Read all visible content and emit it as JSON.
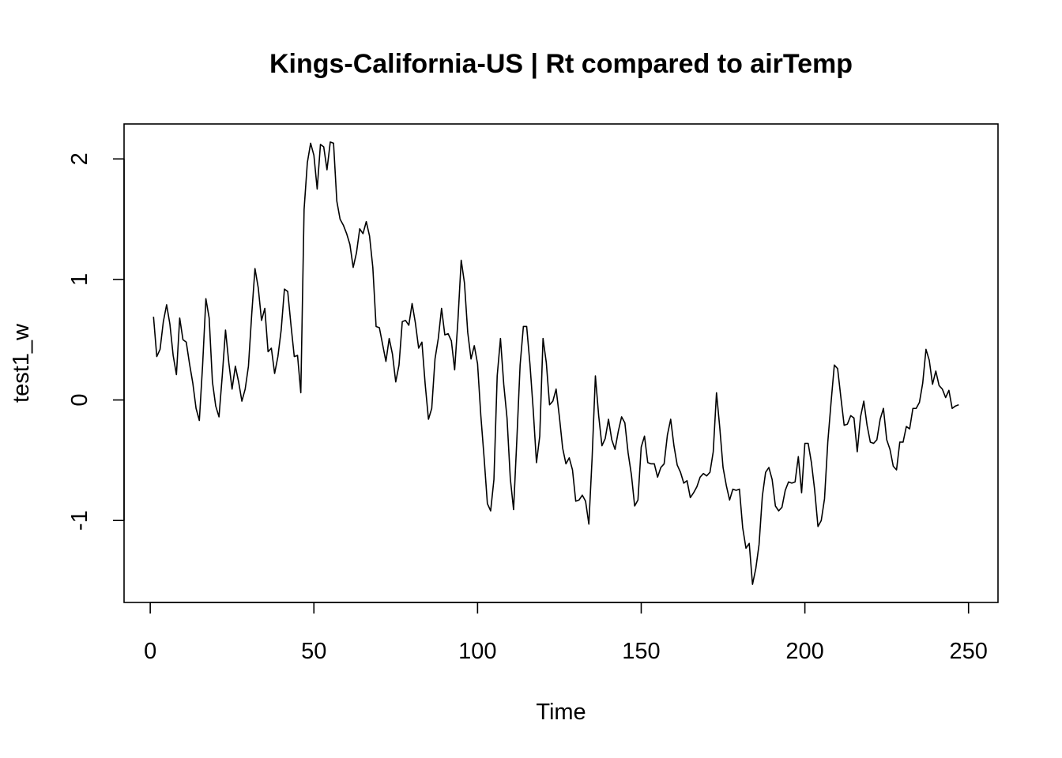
{
  "chart_data": {
    "type": "line",
    "title": "Kings-California-US | Rt compared to airTemp",
    "xlabel": "Time",
    "ylabel": "test1_w",
    "xlim": [
      -8,
      259
    ],
    "ylim": [
      -1.68,
      2.29
    ],
    "x_ticks": [
      0,
      50,
      100,
      150,
      200,
      250
    ],
    "x_tick_labels": [
      "0",
      "50",
      "100",
      "150",
      "200",
      "250"
    ],
    "y_ticks": [
      -1,
      0,
      1,
      2
    ],
    "y_tick_labels": [
      "-1",
      "0",
      "1",
      "2"
    ],
    "grid": false,
    "series": [
      {
        "x_start": 1,
        "x_step": 1,
        "values": [
          0.69,
          0.36,
          0.42,
          0.65,
          0.79,
          0.63,
          0.37,
          0.21,
          0.68,
          0.5,
          0.48,
          0.3,
          0.14,
          -0.07,
          -0.17,
          0.29,
          0.84,
          0.68,
          0.15,
          -0.05,
          -0.14,
          0.2,
          0.58,
          0.31,
          0.09,
          0.28,
          0.15,
          -0.01,
          0.09,
          0.28,
          0.71,
          1.09,
          0.93,
          0.66,
          0.76,
          0.4,
          0.43,
          0.22,
          0.36,
          0.58,
          0.92,
          0.9,
          0.62,
          0.36,
          0.37,
          0.06,
          1.58,
          1.97,
          2.13,
          2.03,
          1.75,
          2.12,
          2.1,
          1.91,
          2.14,
          2.13,
          1.65,
          1.5,
          1.45,
          1.38,
          1.29,
          1.1,
          1.22,
          1.42,
          1.38,
          1.48,
          1.36,
          1.1,
          0.61,
          0.6,
          0.46,
          0.32,
          0.51,
          0.38,
          0.15,
          0.29,
          0.65,
          0.66,
          0.62,
          0.8,
          0.64,
          0.43,
          0.48,
          0.13,
          -0.16,
          -0.07,
          0.34,
          0.51,
          0.76,
          0.54,
          0.55,
          0.49,
          0.25,
          0.66,
          1.16,
          0.97,
          0.56,
          0.34,
          0.45,
          0.3,
          -0.13,
          -0.48,
          -0.86,
          -0.92,
          -0.66,
          0.2,
          0.51,
          0.13,
          -0.15,
          -0.65,
          -0.91,
          -0.33,
          0.29,
          0.61,
          0.61,
          0.3,
          -0.08,
          -0.52,
          -0.3,
          0.51,
          0.31,
          -0.04,
          -0.01,
          0.09,
          -0.14,
          -0.4,
          -0.53,
          -0.48,
          -0.58,
          -0.84,
          -0.83,
          -0.79,
          -0.84,
          -1.03,
          -0.48,
          0.2,
          -0.13,
          -0.38,
          -0.32,
          -0.16,
          -0.33,
          -0.41,
          -0.26,
          -0.14,
          -0.19,
          -0.44,
          -0.62,
          -0.88,
          -0.83,
          -0.39,
          -0.3,
          -0.52,
          -0.53,
          -0.53,
          -0.64,
          -0.56,
          -0.53,
          -0.29,
          -0.16,
          -0.38,
          -0.54,
          -0.6,
          -0.69,
          -0.67,
          -0.81,
          -0.77,
          -0.72,
          -0.64,
          -0.61,
          -0.63,
          -0.6,
          -0.43,
          0.06,
          -0.23,
          -0.56,
          -0.71,
          -0.83,
          -0.74,
          -0.75,
          -0.74,
          -1.06,
          -1.23,
          -1.19,
          -1.53,
          -1.4,
          -1.2,
          -0.8,
          -0.6,
          -0.56,
          -0.66,
          -0.88,
          -0.92,
          -0.89,
          -0.75,
          -0.68,
          -0.69,
          -0.68,
          -0.47,
          -0.77,
          -0.36,
          -0.36,
          -0.52,
          -0.75,
          -1.05,
          -1.0,
          -0.82,
          -0.35,
          -0.02,
          0.29,
          0.26,
          0.02,
          -0.21,
          -0.2,
          -0.13,
          -0.15,
          -0.43,
          -0.14,
          -0.01,
          -0.21,
          -0.35,
          -0.36,
          -0.33,
          -0.16,
          -0.07,
          -0.33,
          -0.41,
          -0.55,
          -0.58,
          -0.35,
          -0.35,
          -0.22,
          -0.24,
          -0.07,
          -0.07,
          -0.02,
          0.14,
          0.42,
          0.33,
          0.13,
          0.24,
          0.12,
          0.09,
          0.02,
          0.08,
          -0.07,
          -0.05,
          -0.04
        ]
      }
    ]
  }
}
